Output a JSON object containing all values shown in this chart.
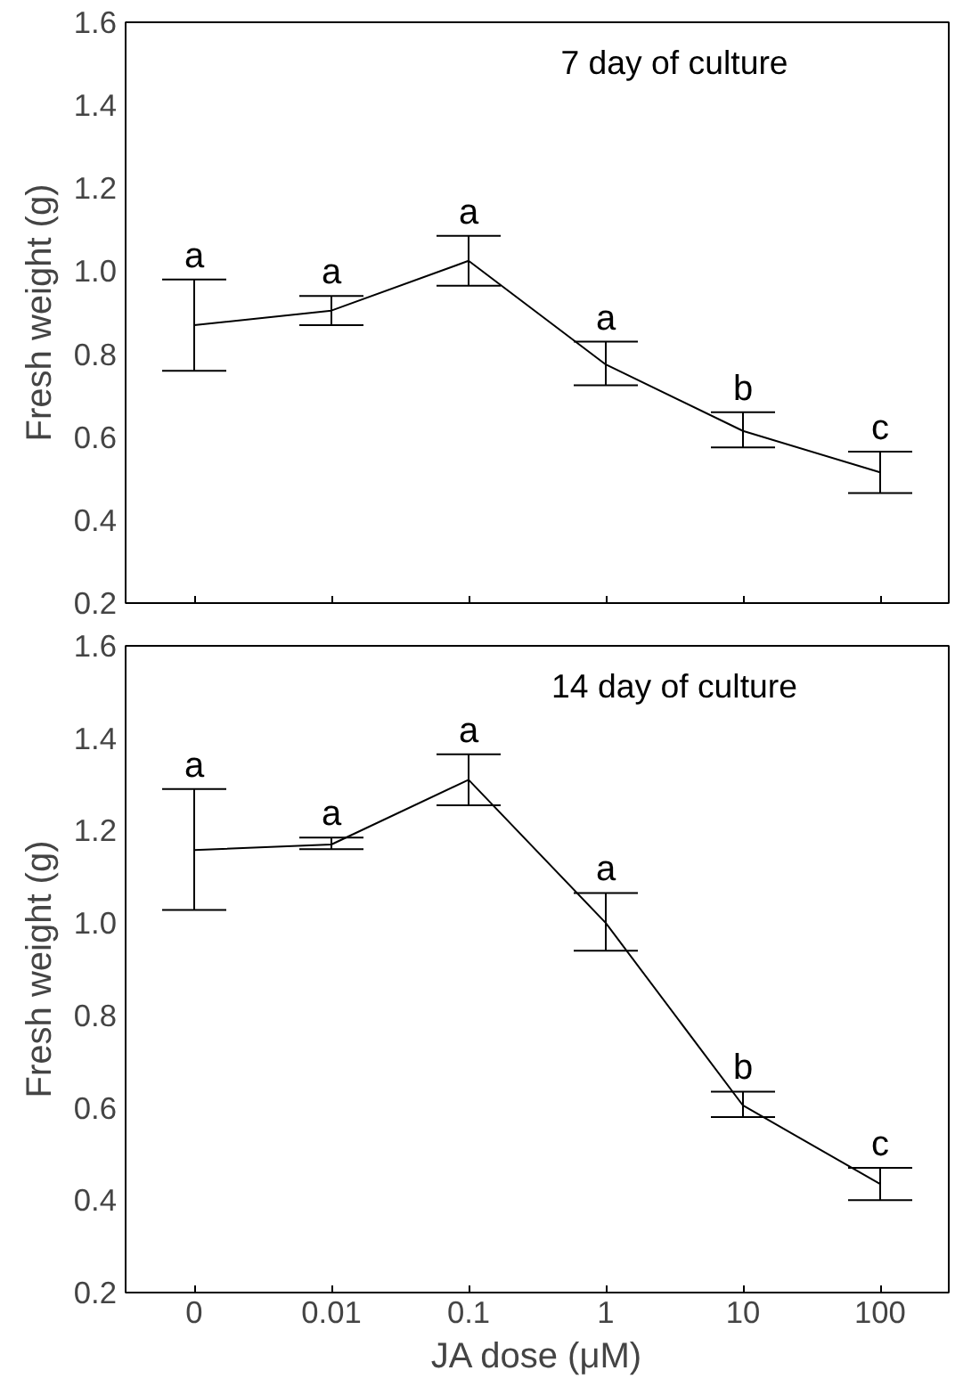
{
  "chart_data": [
    {
      "type": "line",
      "title": "7 day of culture",
      "ylabel": "Fresh weight (g)",
      "categories": [
        "0",
        "0.01",
        "0.1",
        "1",
        "10",
        "100"
      ],
      "tick_labels": "y",
      "marker": "none",
      "line_style": "solid",
      "ylim": [
        0.2,
        1.6
      ],
      "yticks": [
        {
          "value": 0.2,
          "label": "0.2"
        },
        {
          "value": 0.4,
          "label": "0.4"
        },
        {
          "value": 0.6,
          "label": "0.6"
        },
        {
          "value": 0.8,
          "label": "0.8"
        },
        {
          "value": 1,
          "label": "1.0"
        },
        {
          "value": 1.2,
          "label": "1.2"
        },
        {
          "value": 1.4,
          "label": "1.4"
        },
        {
          "value": 1.6,
          "label": "1.6"
        }
      ],
      "series": [
        {
          "color": "#000000",
          "values": [
            0.87,
            0.905,
            1.025,
            0.775,
            0.615,
            0.515
          ],
          "errors": [
            [
              0.76,
              0.98
            ],
            [
              0.87,
              0.94
            ],
            [
              0.965,
              1.085
            ],
            [
              0.725,
              0.83
            ],
            [
              0.575,
              0.66
            ],
            [
              0.465,
              0.565
            ]
          ]
        }
      ],
      "annotations": [
        {
          "text": "a",
          "x": "0",
          "y": 0.98
        },
        {
          "text": "a",
          "x": "0.01",
          "y": 0.94
        },
        {
          "text": "a",
          "x": "0.1",
          "y": 1.085
        },
        {
          "text": "a",
          "x": "1",
          "y": 0.83
        },
        {
          "text": "b",
          "x": "10",
          "y": 0.66
        },
        {
          "text": "c",
          "x": "100",
          "y": 0.565
        }
      ]
    },
    {
      "type": "line",
      "title": "14 day of culture",
      "ylabel": "Fresh weight (g)",
      "xlabel": "JA dose (μM)",
      "categories": [
        "0",
        "0.01",
        "0.1",
        "1",
        "10",
        "100"
      ],
      "marker": "none",
      "line_style": "solid",
      "ylim": [
        0.2,
        1.6
      ],
      "yticks": [
        {
          "value": 0.2,
          "label": "0.2"
        },
        {
          "value": 0.4,
          "label": "0.4"
        },
        {
          "value": 0.6,
          "label": "0.6"
        },
        {
          "value": 0.8,
          "label": "0.8"
        },
        {
          "value": 1,
          "label": "1.0"
        },
        {
          "value": 1.2,
          "label": "1.2"
        },
        {
          "value": 1.4,
          "label": "1.4"
        },
        {
          "value": 1.6,
          "label": "1.6"
        }
      ],
      "series": [
        {
          "color": "#000000",
          "values": [
            1.158,
            1.17,
            1.31,
            1.0,
            0.605,
            0.435
          ],
          "errors": [
            [
              1.028,
              1.29
            ],
            [
              1.16,
              1.185
            ],
            [
              1.255,
              1.365
            ],
            [
              0.94,
              1.065
            ],
            [
              0.58,
              0.635
            ],
            [
              0.4,
              0.47
            ]
          ]
        }
      ],
      "annotations": [
        {
          "text": "a",
          "x": "0",
          "y": 1.29
        },
        {
          "text": "a",
          "x": "0.01",
          "y": 1.185
        },
        {
          "text": "a",
          "x": "0.1",
          "y": 1.365
        },
        {
          "text": "a",
          "x": "1",
          "y": 1.065
        },
        {
          "text": "b",
          "x": "10",
          "y": 0.635
        },
        {
          "text": "c",
          "x": "100",
          "y": 0.47
        }
      ]
    }
  ]
}
